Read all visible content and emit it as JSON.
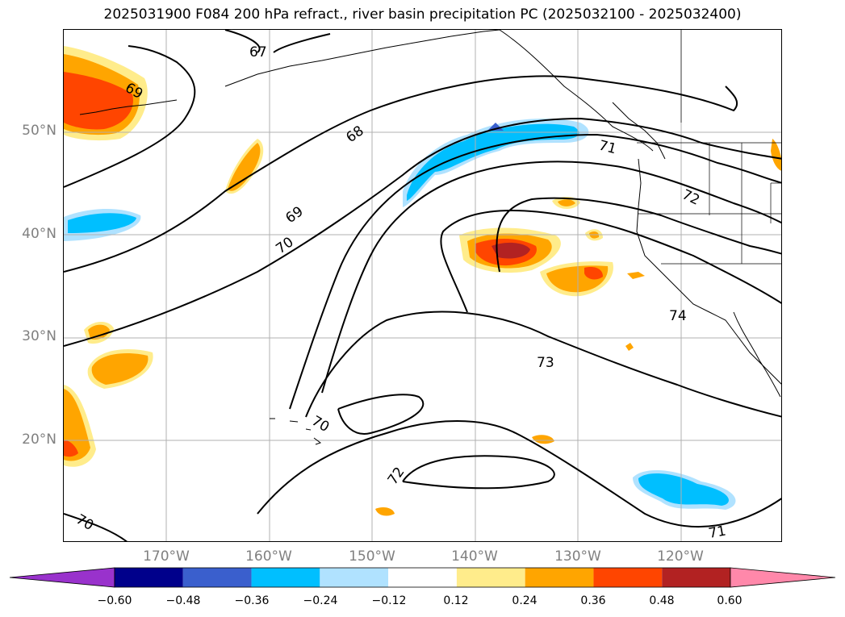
{
  "title": "2025031900 F084 200 hPa refract., river basin precipitation PC (2025032100 - 2025032400)",
  "latitude_labels": [
    "50°N",
    "40°N",
    "30°N",
    "20°N"
  ],
  "longitude_labels": [
    "170°W",
    "160°W",
    "150°W",
    "140°W",
    "130°W",
    "120°W"
  ],
  "contour_labels": {
    "c67": "67",
    "c68": "68",
    "c69a": "69",
    "c69b": "69",
    "c70a": "70",
    "c70b": "70",
    "c70c": "70",
    "c71a": "71",
    "c71b": "71",
    "c72a": "72",
    "c72b": "72",
    "c73": "73",
    "c74": "74"
  },
  "colorbar": {
    "ticks": [
      "−0.60",
      "−0.48",
      "−0.36",
      "−0.24",
      "−0.12",
      "0.12",
      "0.24",
      "0.36",
      "0.48",
      "0.60"
    ],
    "colors": [
      "#9932cc",
      "#00008b",
      "#3a5fcd",
      "#00bfff",
      "#b0e2ff",
      "#ffffff",
      "#ffec8b",
      "#ffa500",
      "#ff4500",
      "#b22222",
      "#ff88aa"
    ]
  },
  "colors": {
    "coast": "#000000",
    "grid": "#b0b0b0",
    "contour": "#000000",
    "axis_label": "#808080"
  }
}
